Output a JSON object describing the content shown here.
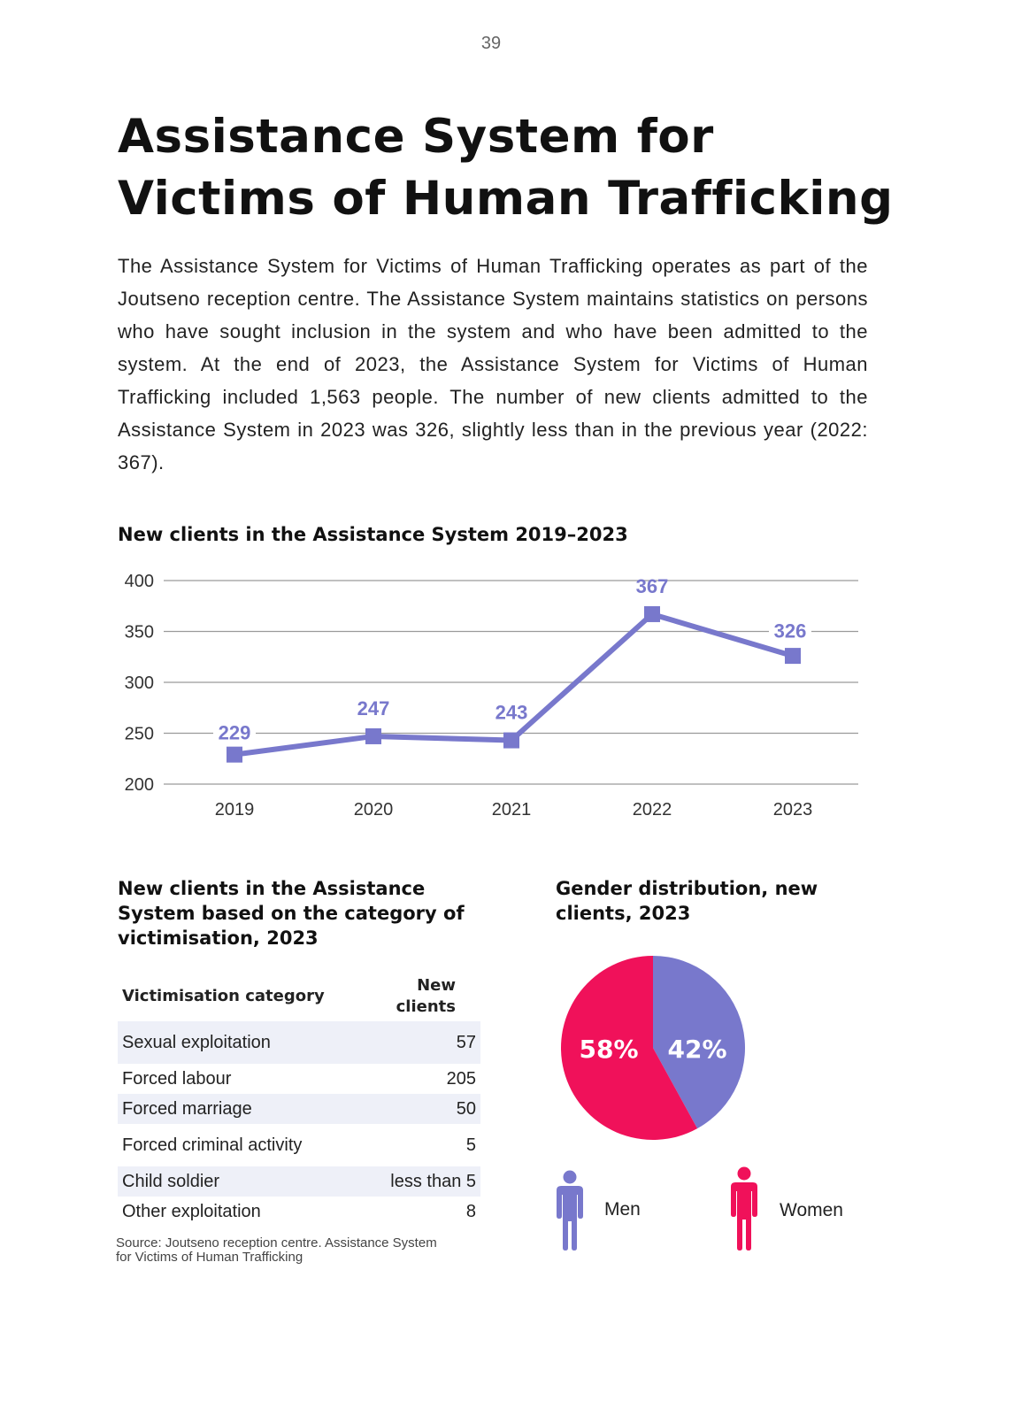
{
  "page": {
    "number": "39"
  },
  "title": "Assistance System for Victims of Human Trafficking",
  "intro": "The Assistance System for Victims of Human Trafficking operates as part of the Joutseno reception centre. The Assistance System maintains statistics on persons who have sought inclusion in the system and who have been admitted to the system.  At the end of 2023, the Assistance System for Victims of Human Trafficking included 1,563 people. The number of new clients admitted to the Assistance System in 2023 was 326, slightly less than in the previous year (2022: 367).",
  "line_section": {
    "title": "New clients in the Assistance System 2019–2023"
  },
  "table_section": {
    "title": "New clients in the Assistance System based on the category of victimisation, 2023",
    "headers": {
      "category": "Victimisation category",
      "clients": "New clients"
    },
    "rows": [
      {
        "category": "Sexual exploitation",
        "clients": "57"
      },
      {
        "category": "Forced labour",
        "clients": "205"
      },
      {
        "category": "Forced marriage",
        "clients": "50"
      },
      {
        "category": "Forced criminal activity",
        "clients": "5"
      },
      {
        "category": "Child soldier",
        "clients": "less than 5"
      },
      {
        "category": "Other exploitation",
        "clients": "8"
      }
    ],
    "source": "Source: Joutseno reception centre. Assistance System for Victims of Human Trafficking"
  },
  "pie_section": {
    "title": "Gender distribution, new clients, 2023",
    "legend": {
      "men": "Men",
      "women": "Women"
    }
  },
  "colors": {
    "men": "#7878cc",
    "women": "#f0115a",
    "line": "#7878cc"
  },
  "icons": {
    "men": "person-icon",
    "women": "person-icon"
  },
  "chart_data": [
    {
      "type": "line",
      "title": "New clients in the Assistance System 2019–2023",
      "categories": [
        "2019",
        "2020",
        "2021",
        "2022",
        "2023"
      ],
      "values": [
        229,
        247,
        243,
        367,
        326
      ],
      "ylim": [
        200,
        400
      ],
      "yticks": [
        200,
        250,
        300,
        350,
        400
      ],
      "grid": true
    },
    {
      "type": "pie",
      "title": "Gender distribution, new clients, 2023",
      "slices": [
        {
          "label": "Men",
          "value": 42,
          "display": "42%"
        },
        {
          "label": "Women",
          "value": 58,
          "display": "58%"
        }
      ]
    }
  ]
}
